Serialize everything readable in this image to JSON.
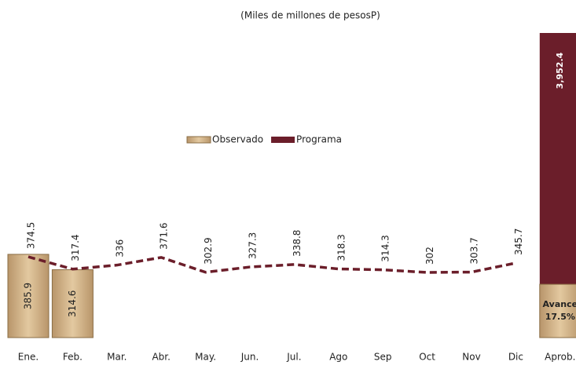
{
  "chart_data": {
    "type": "bar_line",
    "subtitle": "(Miles de millones de pesosP)",
    "categories": [
      "Ene.",
      "Feb.",
      "Mar.",
      "Abr.",
      "May.",
      "Jun.",
      "Jul.",
      "Ago",
      "Sep",
      "Oct",
      "Nov",
      "Dic"
    ],
    "series": [
      {
        "name": "Observado",
        "color": "#c9a877",
        "kind": "bar",
        "values": [
          385.9,
          314.6,
          null,
          null,
          null,
          null,
          null,
          null,
          null,
          null,
          null,
          null
        ]
      },
      {
        "name": "Programa",
        "color": "#6b1e2a",
        "kind": "line",
        "values": [
          374.5,
          317.4,
          336.0,
          371.6,
          302.9,
          327.3,
          338.8,
          318.3,
          314.3,
          302.0,
          303.7,
          345.7
        ]
      }
    ],
    "aprob": {
      "category": "Aprob.",
      "value": 3952.4,
      "value_label": "3,952.4",
      "avance_label": "Avance",
      "avance": 17.5,
      "avance_value_label": "17.5%"
    },
    "ylim": [
      0,
      1412
    ]
  }
}
